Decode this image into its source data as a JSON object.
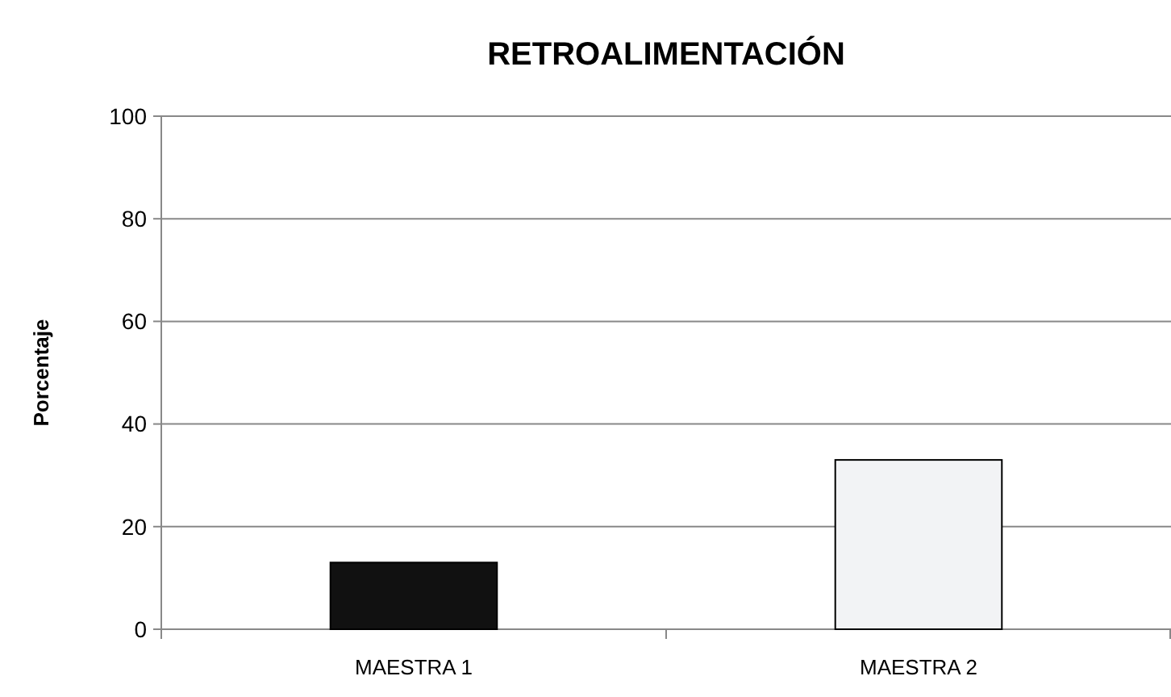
{
  "chart_data": {
    "type": "bar",
    "title": "RETROALIMENTACIÓN",
    "ylabel": "Porcentaje",
    "categories": [
      "MAESTRA 1",
      "MAESTRA 2"
    ],
    "values": [
      13,
      33
    ],
    "colors": [
      "#111111",
      "#f2f3f5"
    ],
    "ylim": [
      0,
      100
    ],
    "yticks": [
      0,
      20,
      40,
      60,
      80,
      100
    ],
    "grid": "y"
  }
}
